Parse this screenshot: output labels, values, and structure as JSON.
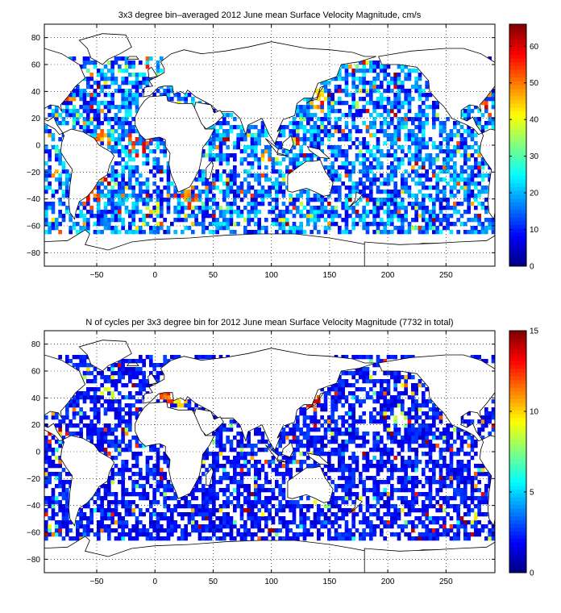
{
  "chart_data": [
    {
      "type": "heatmap",
      "title": "3x3 degree bin–averaged 2012 June mean Surface Velocity Magnitude, cm/s",
      "xlabel": "",
      "ylabel": "",
      "xlim": [
        -95,
        292
      ],
      "ylim": [
        -90,
        90
      ],
      "x_ticks": [
        -50,
        0,
        50,
        100,
        150,
        200,
        250
      ],
      "y_ticks": [
        -80,
        -60,
        -40,
        -20,
        0,
        20,
        40,
        60,
        80
      ],
      "x_tick_labels": [
        "−50",
        "0",
        "50",
        "100",
        "150",
        "200",
        "250"
      ],
      "y_tick_labels": [
        "−80",
        "−60",
        "−40",
        "−20",
        "0",
        "20",
        "40",
        "60",
        "80"
      ],
      "grid": "dotted",
      "colorbar": {
        "min": 0,
        "max": 66,
        "ticks": [
          0,
          10,
          20,
          30,
          40,
          50,
          60
        ],
        "tick_labels": [
          "0",
          "10",
          "20",
          "30",
          "40",
          "50",
          "60"
        ],
        "colormap": "jet",
        "placement": "right"
      },
      "bin_size_deg": 3,
      "data_coverage_lat": [
        -66,
        66
      ],
      "typical_value_range": [
        5,
        25
      ],
      "high_value_regions": [
        {
          "lon": -5,
          "lat": 0,
          "value": 60
        },
        {
          "lon": -45,
          "lat": 5,
          "value": 55
        },
        {
          "lon": -20,
          "lat": 2,
          "value": 62
        },
        {
          "lon": -55,
          "lat": -40,
          "value": 60
        },
        {
          "lon": 30,
          "lat": -38,
          "value": 58
        },
        {
          "lon": 140,
          "lat": 35,
          "value": 50
        },
        {
          "lon": -75,
          "lat": 33,
          "value": 55
        },
        {
          "lon": 283,
          "lat": 27,
          "value": 62
        },
        {
          "lon": 0,
          "lat": -48,
          "value": 45
        }
      ]
    },
    {
      "type": "heatmap",
      "title": "N of cycles per 3x3 degree bin for 2012 June mean Surface Velocity Magnitude (7732 in total)",
      "xlabel": "",
      "ylabel": "",
      "xlim": [
        -95,
        292
      ],
      "ylim": [
        -90,
        90
      ],
      "x_ticks": [
        -50,
        0,
        50,
        100,
        150,
        200,
        250
      ],
      "y_ticks": [
        -80,
        -60,
        -40,
        -20,
        0,
        20,
        40,
        60,
        80
      ],
      "x_tick_labels": [
        "−50",
        "0",
        "50",
        "100",
        "150",
        "200",
        "250"
      ],
      "y_tick_labels": [
        "−80",
        "−60",
        "−40",
        "−20",
        "0",
        "20",
        "40",
        "60",
        "80"
      ],
      "grid": "dotted",
      "colorbar": {
        "min": 0,
        "max": 15,
        "ticks": [
          0,
          5,
          10,
          15
        ],
        "tick_labels": [
          "0",
          "5",
          "10",
          "15"
        ],
        "colormap": "jet",
        "placement": "right"
      },
      "bin_size_deg": 3,
      "total_cycles": 7732,
      "data_coverage_lat": [
        -66,
        72
      ],
      "typical_value_range": [
        1,
        3
      ],
      "high_value_regions": [
        {
          "lon": 10,
          "lat": 40,
          "value": 13
        },
        {
          "lon": 135,
          "lat": 38,
          "value": 14
        },
        {
          "lon": 20,
          "lat": 38,
          "value": 11
        },
        {
          "lon": -40,
          "lat": 45,
          "value": 10
        },
        {
          "lon": 210,
          "lat": 22,
          "value": 9
        }
      ]
    }
  ]
}
